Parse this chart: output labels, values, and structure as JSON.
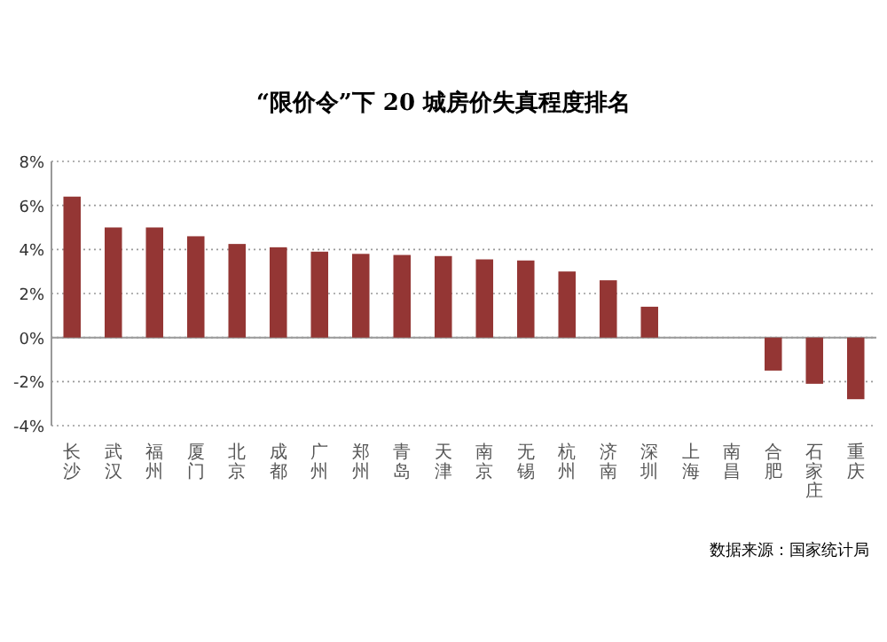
{
  "chart_data": {
    "type": "bar",
    "title": "“限价令”下 20 城房价失真程度排名",
    "categories": [
      "长沙",
      "武汉",
      "福州",
      "厦门",
      "北京",
      "成都",
      "广州",
      "郑州",
      "青岛",
      "天津",
      "南京",
      "无锡",
      "杭州",
      "济南",
      "深圳",
      "上海",
      "南昌",
      "合肥",
      "石家庄",
      "重庆"
    ],
    "series": [
      {
        "color": "#943634",
        "values": [
          6.4,
          5.0,
          5.0,
          4.6,
          4.25,
          4.1,
          3.9,
          3.8,
          3.75,
          3.7,
          3.55,
          3.5,
          3.0,
          2.6,
          1.4,
          null,
          null,
          -1.5,
          -2.1,
          -2.8
        ]
      }
    ],
    "ylim": [
      -4,
      8
    ],
    "yticks": [
      {
        "value": -4,
        "label": "-4%"
      },
      {
        "value": -2,
        "label": "-2%"
      },
      {
        "value": 0,
        "label": "0%"
      },
      {
        "value": 2,
        "label": "2%"
      },
      {
        "value": 4,
        "label": "4%"
      },
      {
        "value": 6,
        "label": "6%"
      },
      {
        "value": 8,
        "label": "8%"
      }
    ],
    "grid": "y",
    "annotations": [
      "数据来源：国家统计局"
    ]
  }
}
